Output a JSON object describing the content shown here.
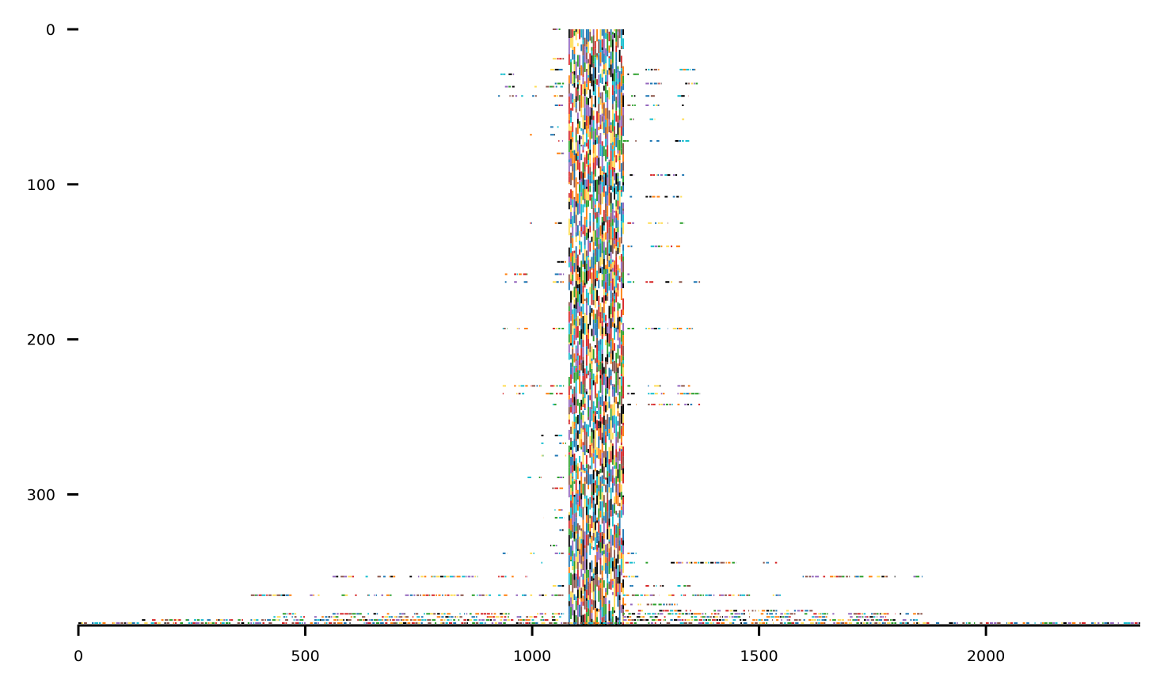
{
  "chart_data": {
    "type": "heatmap",
    "title": "",
    "xlabel": "",
    "ylabel": "",
    "xlim": [
      0,
      2340
    ],
    "ylim": [
      0,
      384
    ],
    "y_inverted": true,
    "x_ticks": [
      0,
      500,
      1000,
      1500,
      2000
    ],
    "x_tick_labels": [
      "0",
      "500",
      "1000",
      "1500",
      "2000"
    ],
    "y_ticks": [
      0,
      100,
      200,
      300
    ],
    "y_tick_labels": [
      "0",
      "100",
      "200",
      "300"
    ],
    "grid": false,
    "legend": "none",
    "palette": [
      "#1f77b4",
      "#ff7f0e",
      "#2ca02c",
      "#d62728",
      "#ffdd55",
      "#000000",
      "#9467bd",
      "#8c564b",
      "#17becf"
    ],
    "dense_band": {
      "x_start": 1080,
      "x_end": 1200,
      "y_start": 0,
      "y_end": 384
    },
    "row_segments": [
      {
        "y": 0,
        "segments": [
          [
            1045,
            1062
          ]
        ]
      },
      {
        "y": 19,
        "segments": [
          [
            1005,
            1010
          ],
          [
            1045,
            1070
          ]
        ]
      },
      {
        "y": 26,
        "segments": [
          [
            1040,
            1070
          ],
          [
            1250,
            1280
          ],
          [
            1325,
            1360
          ]
        ]
      },
      {
        "y": 29,
        "segments": [
          [
            930,
            960
          ],
          [
            1020,
            1030
          ],
          [
            1210,
            1235
          ]
        ]
      },
      {
        "y": 35,
        "segments": [
          [
            1050,
            1070
          ],
          [
            1250,
            1285
          ],
          [
            1325,
            1365
          ]
        ]
      },
      {
        "y": 37,
        "segments": [
          [
            940,
            970
          ],
          [
            1005,
            1010
          ],
          [
            1030,
            1070
          ]
        ]
      },
      {
        "y": 43,
        "segments": [
          [
            925,
            930
          ],
          [
            950,
            980
          ],
          [
            1000,
            1010
          ],
          [
            1040,
            1070
          ],
          [
            1210,
            1230
          ],
          [
            1250,
            1275
          ],
          [
            1320,
            1345
          ]
        ]
      },
      {
        "y": 49,
        "segments": [
          [
            1050,
            1070
          ],
          [
            1210,
            1230
          ],
          [
            1250,
            1280
          ],
          [
            1330,
            1335
          ]
        ]
      },
      {
        "y": 58,
        "segments": [
          [
            1215,
            1225
          ],
          [
            1250,
            1280
          ],
          [
            1330,
            1335
          ]
        ]
      },
      {
        "y": 63,
        "segments": [
          [
            1040,
            1060
          ]
        ]
      },
      {
        "y": 68,
        "segments": [
          [
            995,
            1000
          ],
          [
            1040,
            1050
          ]
        ]
      },
      {
        "y": 72,
        "segments": [
          [
            1045,
            1070
          ],
          [
            1200,
            1230
          ],
          [
            1250,
            1280
          ],
          [
            1315,
            1360
          ]
        ]
      },
      {
        "y": 80,
        "segments": [
          [
            1045,
            1070
          ]
        ]
      },
      {
        "y": 94,
        "segments": [
          [
            1215,
            1225
          ],
          [
            1260,
            1320
          ],
          [
            1330,
            1335
          ]
        ]
      },
      {
        "y": 108,
        "segments": [
          [
            1215,
            1220
          ],
          [
            1250,
            1300
          ],
          [
            1310,
            1335
          ]
        ]
      },
      {
        "y": 125,
        "segments": [
          [
            995,
            1000
          ],
          [
            1050,
            1070
          ],
          [
            1210,
            1225
          ],
          [
            1255,
            1300
          ],
          [
            1310,
            1335
          ]
        ]
      },
      {
        "y": 140,
        "segments": [
          [
            1210,
            1225
          ],
          [
            1255,
            1330
          ]
        ]
      },
      {
        "y": 150,
        "segments": [
          [
            1055,
            1075
          ]
        ]
      },
      {
        "y": 158,
        "segments": [
          [
            940,
            945
          ],
          [
            960,
            990
          ],
          [
            1050,
            1070
          ],
          [
            1210,
            1225
          ]
        ]
      },
      {
        "y": 163,
        "segments": [
          [
            940,
            945
          ],
          [
            960,
            990
          ],
          [
            1045,
            1070
          ],
          [
            1210,
            1225
          ],
          [
            1250,
            1310
          ],
          [
            1320,
            1370
          ]
        ]
      },
      {
        "y": 193,
        "segments": [
          [
            935,
            945
          ],
          [
            960,
            995
          ],
          [
            1045,
            1070
          ],
          [
            1210,
            1225
          ],
          [
            1250,
            1300
          ],
          [
            1310,
            1355
          ]
        ]
      },
      {
        "y": 230,
        "segments": [
          [
            935,
            945
          ],
          [
            960,
            1020
          ],
          [
            1040,
            1070
          ],
          [
            1210,
            1230
          ],
          [
            1255,
            1300
          ],
          [
            1320,
            1350
          ]
        ]
      },
      {
        "y": 235,
        "segments": [
          [
            935,
            945
          ],
          [
            965,
            985
          ],
          [
            1030,
            1070
          ],
          [
            1210,
            1230
          ],
          [
            1255,
            1310
          ],
          [
            1320,
            1370
          ]
        ]
      },
      {
        "y": 242,
        "segments": [
          [
            1045,
            1070
          ],
          [
            1210,
            1230
          ],
          [
            1255,
            1310
          ],
          [
            1320,
            1370
          ]
        ]
      },
      {
        "y": 262,
        "segments": [
          [
            1020,
            1025
          ],
          [
            1050,
            1070
          ]
        ]
      },
      {
        "y": 267,
        "segments": [
          [
            1020,
            1025
          ],
          [
            1050,
            1075
          ]
        ]
      },
      {
        "y": 275,
        "segments": [
          [
            1020,
            1025
          ],
          [
            1050,
            1075
          ]
        ]
      },
      {
        "y": 289,
        "segments": [
          [
            990,
            1000
          ],
          [
            1015,
            1020
          ],
          [
            1055,
            1070
          ]
        ]
      },
      {
        "y": 296,
        "segments": [
          [
            1040,
            1070
          ]
        ]
      },
      {
        "y": 310,
        "segments": [
          [
            1040,
            1070
          ]
        ]
      },
      {
        "y": 315,
        "segments": [
          [
            1020,
            1025
          ],
          [
            1050,
            1070
          ]
        ]
      },
      {
        "y": 323,
        "segments": [
          [
            1050,
            1070
          ]
        ]
      },
      {
        "y": 333,
        "segments": [
          [
            1040,
            1055
          ]
        ]
      },
      {
        "y": 338,
        "segments": [
          [
            935,
            945
          ],
          [
            995,
            1005
          ],
          [
            1050,
            1070
          ],
          [
            1210,
            1230
          ]
        ]
      },
      {
        "y": 344,
        "segments": [
          [
            1020,
            1025
          ],
          [
            1205,
            1255
          ],
          [
            1300,
            1450
          ],
          [
            1500,
            1540
          ]
        ]
      },
      {
        "y": 353,
        "segments": [
          [
            560,
            700
          ],
          [
            730,
            880
          ],
          [
            925,
            960
          ],
          [
            975,
            990
          ],
          [
            1200,
            1235
          ],
          [
            1590,
            1700
          ],
          [
            1710,
            1800
          ],
          [
            1840,
            1860
          ]
        ]
      },
      {
        "y": 359,
        "segments": [
          [
            1045,
            1070
          ],
          [
            1215,
            1225
          ],
          [
            1250,
            1290
          ],
          [
            1320,
            1350
          ]
        ]
      },
      {
        "y": 365,
        "segments": [
          [
            380,
            470
          ],
          [
            510,
            540
          ],
          [
            580,
            690
          ],
          [
            720,
            910
          ],
          [
            925,
            1000
          ],
          [
            1015,
            1070
          ],
          [
            1200,
            1280
          ],
          [
            1300,
            1480
          ],
          [
            1530,
            1560
          ]
        ]
      },
      {
        "y": 371,
        "segments": [
          [
            1200,
            1320
          ]
        ]
      },
      {
        "y": 375,
        "segments": [
          [
            1200,
            1260
          ],
          [
            1280,
            1350
          ],
          [
            1400,
            1540
          ],
          [
            1560,
            1620
          ]
        ]
      },
      {
        "y": 377,
        "segments": [
          [
            450,
            480
          ],
          [
            560,
            660
          ],
          [
            680,
            720
          ],
          [
            730,
            820
          ],
          [
            840,
            950
          ],
          [
            1000,
            1070
          ],
          [
            1200,
            1480
          ],
          [
            1500,
            1580
          ],
          [
            1600,
            1680
          ],
          [
            1690,
            1800
          ],
          [
            1810,
            1860
          ]
        ]
      },
      {
        "y": 379,
        "segments": [
          [
            430,
            500
          ],
          [
            510,
            580
          ],
          [
            600,
            640
          ],
          [
            660,
            760
          ],
          [
            790,
            880
          ],
          [
            900,
            1080
          ],
          [
            1200,
            1300
          ],
          [
            1320,
            1480
          ],
          [
            1500,
            1570
          ],
          [
            1600,
            1650
          ],
          [
            1700,
            1780
          ]
        ]
      },
      {
        "y": 381,
        "segments": [
          [
            140,
            500
          ],
          [
            520,
            1070
          ],
          [
            1200,
            1850
          ]
        ]
      },
      {
        "y": 383,
        "segments": [
          [
            0,
            2340
          ]
        ]
      }
    ]
  }
}
